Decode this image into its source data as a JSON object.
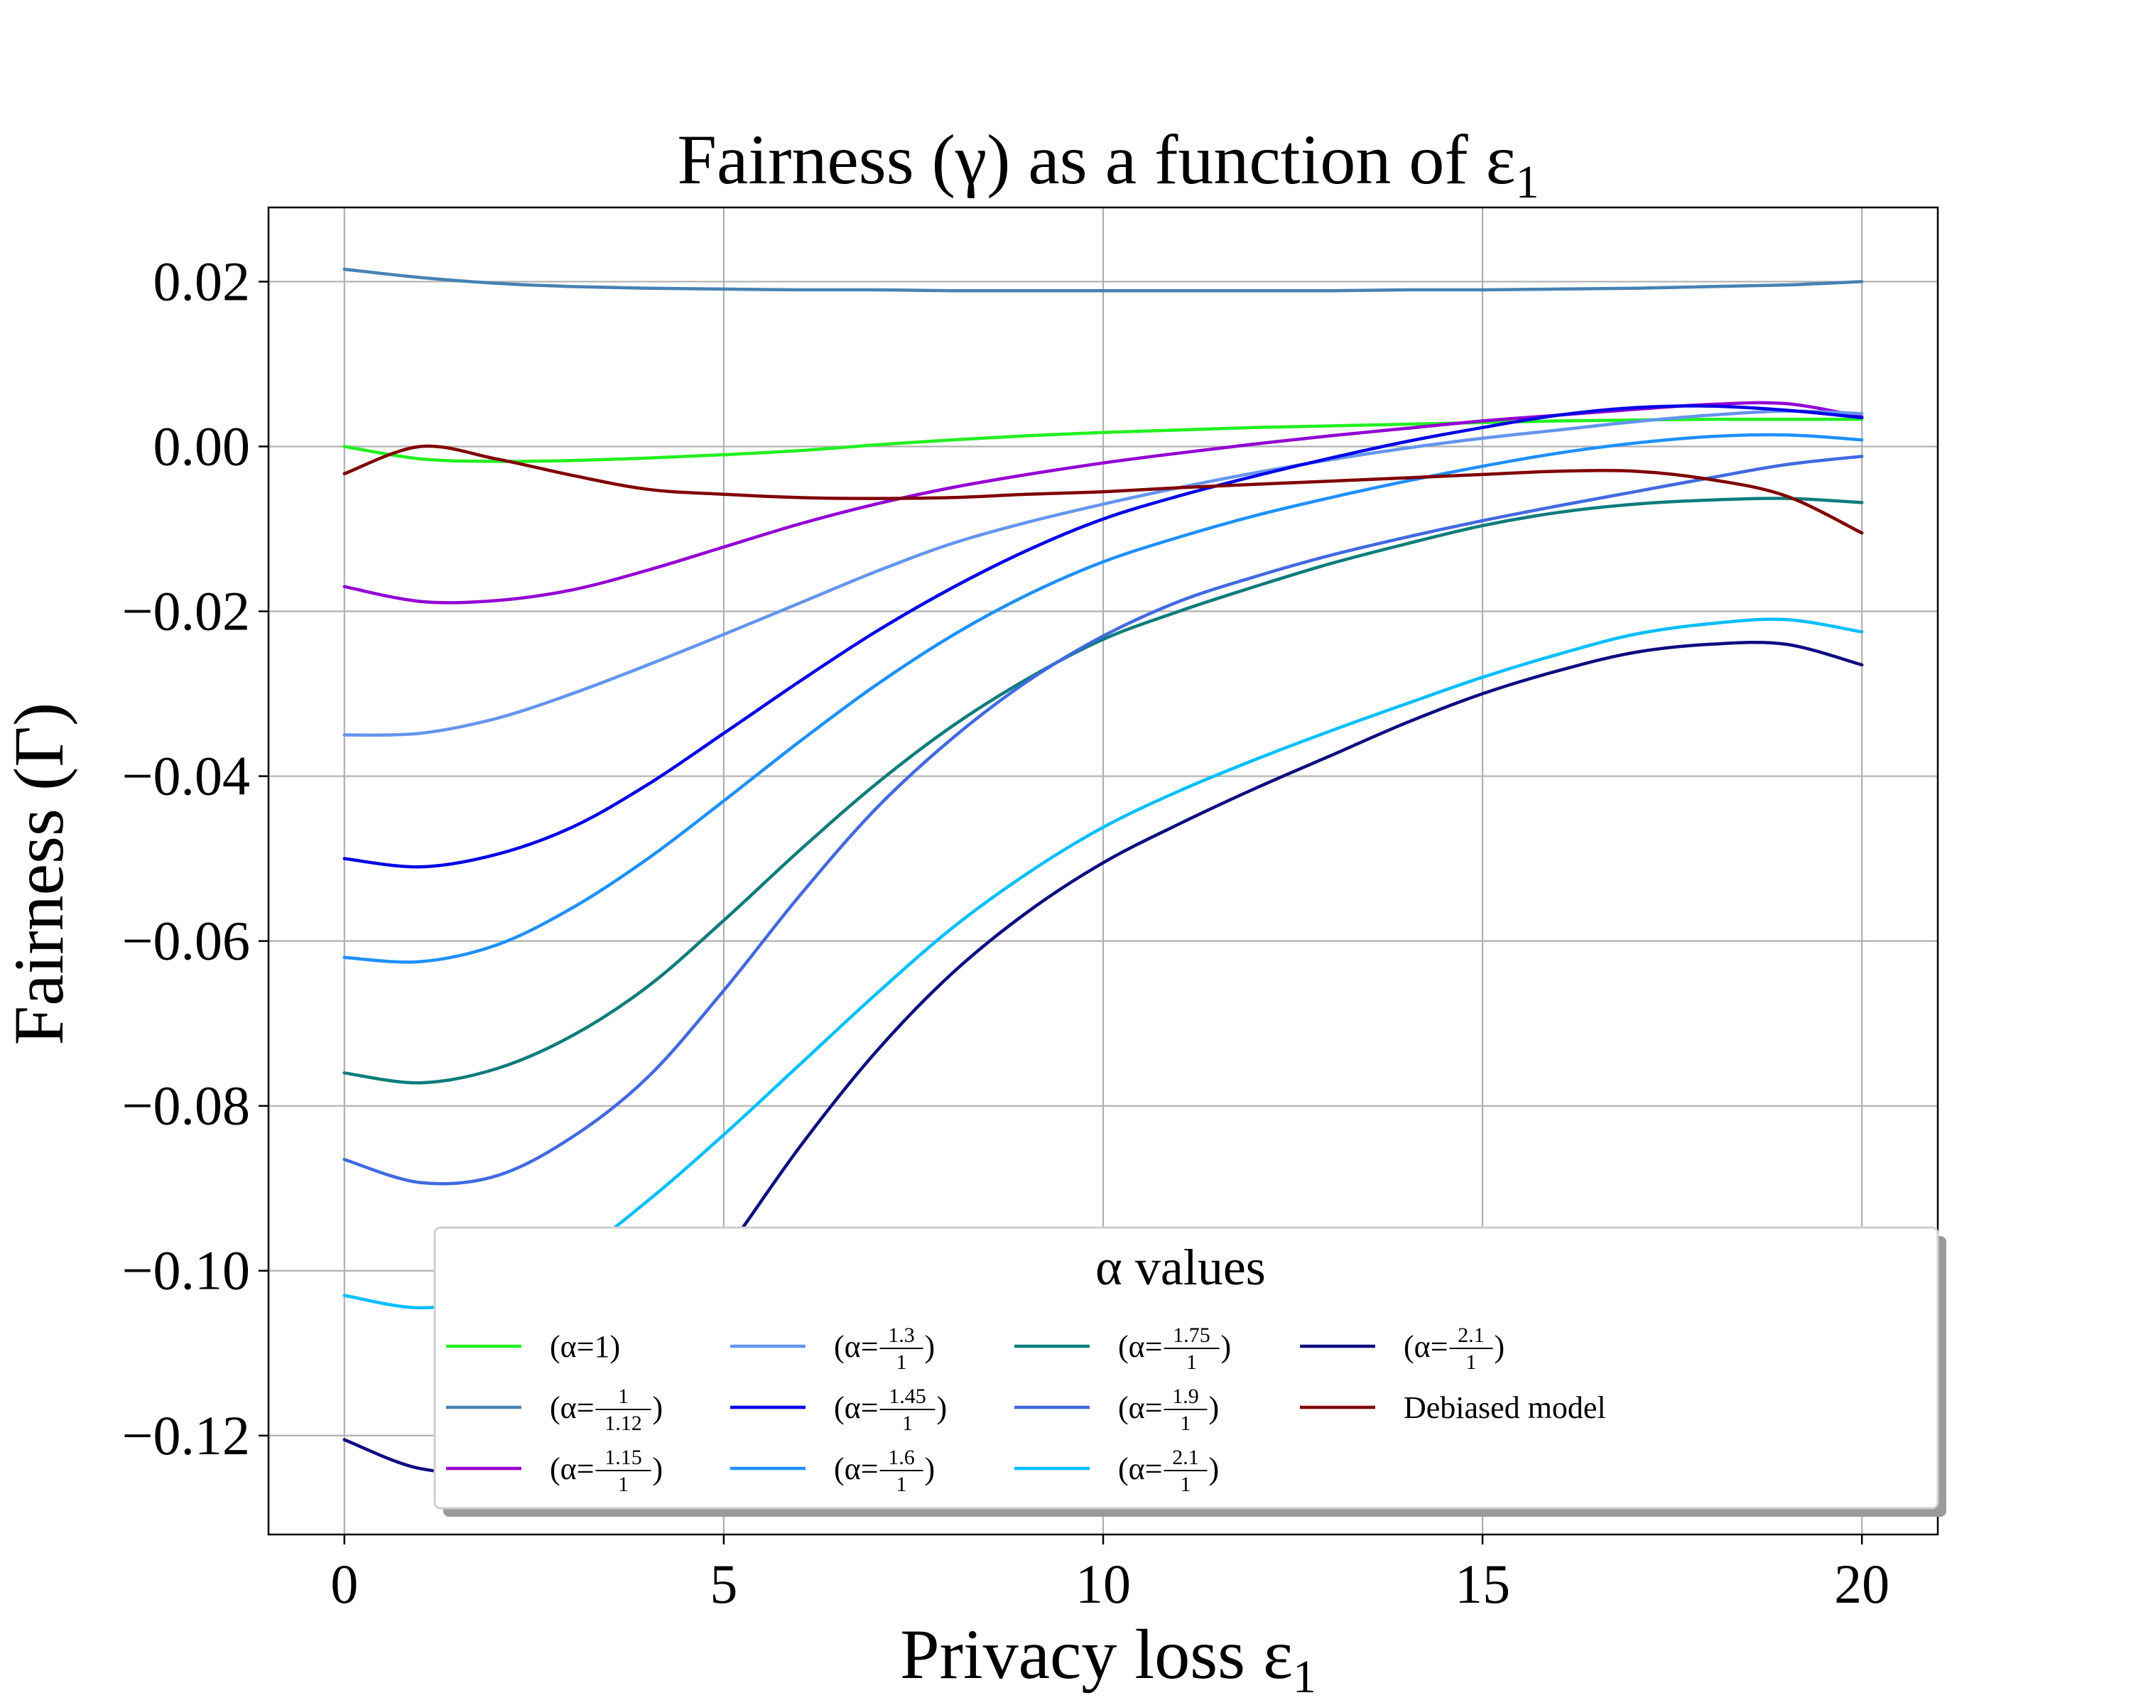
{
  "chart_data": {
    "type": "line",
    "title": "Fairness (γ) as a function of ε",
    "title_subscript": "1",
    "xlabel": "Privacy loss ε",
    "xlabel_subscript": "1",
    "ylabel": "Fairness (Γ)",
    "xlim": [
      -1,
      21
    ],
    "ylim": [
      -0.132,
      0.029
    ],
    "xticks": [
      0,
      5,
      10,
      15,
      20
    ],
    "xtick_labels": [
      "0",
      "5",
      "10",
      "15",
      "20"
    ],
    "yticks": [
      0.02,
      0.0,
      -0.02,
      -0.04,
      -0.06,
      -0.08,
      -0.1,
      -0.12
    ],
    "ytick_labels": [
      "0.02",
      "0.00",
      "−0.02",
      "−0.04",
      "−0.06",
      "−0.08",
      "−0.10",
      "−0.12"
    ],
    "grid": true,
    "legend": {
      "title": "α values",
      "placement": "lower-right",
      "columns": 5
    },
    "x": [
      0,
      1,
      2,
      3,
      4,
      5,
      6,
      7,
      8,
      9,
      10,
      11,
      12,
      13,
      14,
      15,
      16,
      17,
      18,
      19,
      20
    ],
    "series": [
      {
        "name": "(α=1)",
        "label": {
          "base": "(α=",
          "num": "1",
          "den": "",
          "end": ")"
        },
        "color": "#22f022",
        "values": [
          0.0,
          -0.0015,
          -0.0018,
          -0.0017,
          -0.0014,
          -0.001,
          -0.0005,
          0.0002,
          0.0008,
          0.0013,
          0.0017,
          0.002,
          0.0023,
          0.0025,
          0.0027,
          0.0029,
          0.0031,
          0.0032,
          0.0033,
          0.0033,
          0.0033
        ]
      },
      {
        "name": "(α=1/1.12)",
        "label": {
          "base": "(α=",
          "num": "1",
          "den": "1.12",
          "end": ")"
        },
        "color": "#4682b4",
        "values": [
          0.0215,
          0.0205,
          0.0198,
          0.0194,
          0.0192,
          0.0191,
          0.019,
          0.019,
          0.0189,
          0.0189,
          0.0189,
          0.0189,
          0.0189,
          0.0189,
          0.019,
          0.019,
          0.0191,
          0.0192,
          0.0194,
          0.0196,
          0.02
        ]
      },
      {
        "name": "(α=1.15/1)",
        "label": {
          "base": "(α=",
          "num": "1.15",
          "den": "1",
          "end": ")"
        },
        "color": "#9400d3",
        "values": [
          -0.017,
          -0.0188,
          -0.0187,
          -0.0174,
          -0.015,
          -0.0122,
          -0.0094,
          -0.007,
          -0.005,
          -0.0034,
          -0.002,
          -0.0008,
          0.0003,
          0.0013,
          0.0022,
          0.0031,
          0.0038,
          0.0045,
          0.0051,
          0.0052,
          0.0036
        ]
      },
      {
        "name": "(α=1.3/1)",
        "label": {
          "base": "(α=",
          "num": "1.3",
          "den": "1",
          "end": ")"
        },
        "color": "#6495ed",
        "values": [
          -0.035,
          -0.0348,
          -0.033,
          -0.03,
          -0.0265,
          -0.0228,
          -0.019,
          -0.0152,
          -0.0118,
          -0.0092,
          -0.007,
          -0.005,
          -0.0032,
          -0.0016,
          -0.0002,
          0.001,
          0.002,
          0.003,
          0.0038,
          0.0043,
          0.004
        ]
      },
      {
        "name": "(α=1.45/1)",
        "label": {
          "base": "(α=",
          "num": "1.45",
          "den": "1",
          "end": ")"
        },
        "color": "#0000e6",
        "values": [
          -0.05,
          -0.051,
          -0.0495,
          -0.0462,
          -0.041,
          -0.0348,
          -0.0285,
          -0.0225,
          -0.0172,
          -0.0126,
          -0.0088,
          -0.006,
          -0.0036,
          -0.0014,
          0.0006,
          0.0023,
          0.0038,
          0.0047,
          0.0049,
          0.0044,
          0.0035
        ]
      },
      {
        "name": "(α=1.6/1)",
        "label": {
          "base": "(α=",
          "num": "1.6",
          "den": "1",
          "end": ")"
        },
        "color": "#1e90ff",
        "values": [
          -0.062,
          -0.0625,
          -0.0605,
          -0.056,
          -0.05,
          -0.043,
          -0.0358,
          -0.029,
          -0.023,
          -0.018,
          -0.014,
          -0.011,
          -0.0084,
          -0.0062,
          -0.0042,
          -0.0024,
          -0.0008,
          0.0004,
          0.0012,
          0.0014,
          0.0008
        ]
      },
      {
        "name": "(α=1.75/1)",
        "label": {
          "base": "(α=",
          "num": "1.75",
          "den": "1",
          "end": ")"
        },
        "color": "#0e7c7b",
        "values": [
          -0.076,
          -0.0772,
          -0.0755,
          -0.0715,
          -0.0655,
          -0.0575,
          -0.049,
          -0.041,
          -0.034,
          -0.0282,
          -0.0234,
          -0.02,
          -0.017,
          -0.0142,
          -0.0118,
          -0.0096,
          -0.008,
          -0.007,
          -0.0065,
          -0.0063,
          -0.0068
        ]
      },
      {
        "name": "(α=1.9/1)",
        "label": {
          "base": "(α=",
          "num": "1.9",
          "den": "1",
          "end": ")"
        },
        "color": "#4169e1",
        "values": [
          -0.0865,
          -0.0893,
          -0.0885,
          -0.0838,
          -0.0765,
          -0.066,
          -0.0545,
          -0.044,
          -0.0355,
          -0.0285,
          -0.023,
          -0.0188,
          -0.0158,
          -0.0132,
          -0.011,
          -0.009,
          -0.0072,
          -0.0055,
          -0.0038,
          -0.0022,
          -0.0012
        ]
      },
      {
        "name": "(α=2.1/1)",
        "label": {
          "base": "(α=",
          "num": "2.1",
          "den": "1",
          "end": ")"
        },
        "color": "#00bfff",
        "values": [
          -0.103,
          -0.1045,
          -0.103,
          -0.0985,
          -0.0915,
          -0.0835,
          -0.075,
          -0.0665,
          -0.0585,
          -0.0518,
          -0.0462,
          -0.0418,
          -0.038,
          -0.0345,
          -0.0312,
          -0.028,
          -0.0252,
          -0.0228,
          -0.0215,
          -0.021,
          -0.0225
        ]
      },
      {
        "name": "(α=2.1/1)",
        "label": {
          "base": "(α=",
          "num": "2.1",
          "den": "1",
          "end": ")"
        },
        "color": "#0d0d80",
        "values": [
          -0.1205,
          -0.124,
          -0.124,
          -0.119,
          -0.11,
          -0.098,
          -0.085,
          -0.0735,
          -0.064,
          -0.0565,
          -0.0505,
          -0.0458,
          -0.0415,
          -0.0375,
          -0.0335,
          -0.03,
          -0.0272,
          -0.025,
          -0.024,
          -0.024,
          -0.0265
        ]
      },
      {
        "name": "Debiased model",
        "label": {
          "base": "Debiased model",
          "num": "",
          "den": "",
          "end": ""
        },
        "color": "#800000",
        "values": [
          -0.0033,
          0.0,
          -0.0015,
          -0.0035,
          -0.0052,
          -0.0058,
          -0.0062,
          -0.0063,
          -0.0062,
          -0.0058,
          -0.0055,
          -0.005,
          -0.0046,
          -0.0042,
          -0.0038,
          -0.0034,
          -0.003,
          -0.003,
          -0.004,
          -0.006,
          -0.0105
        ]
      }
    ]
  }
}
